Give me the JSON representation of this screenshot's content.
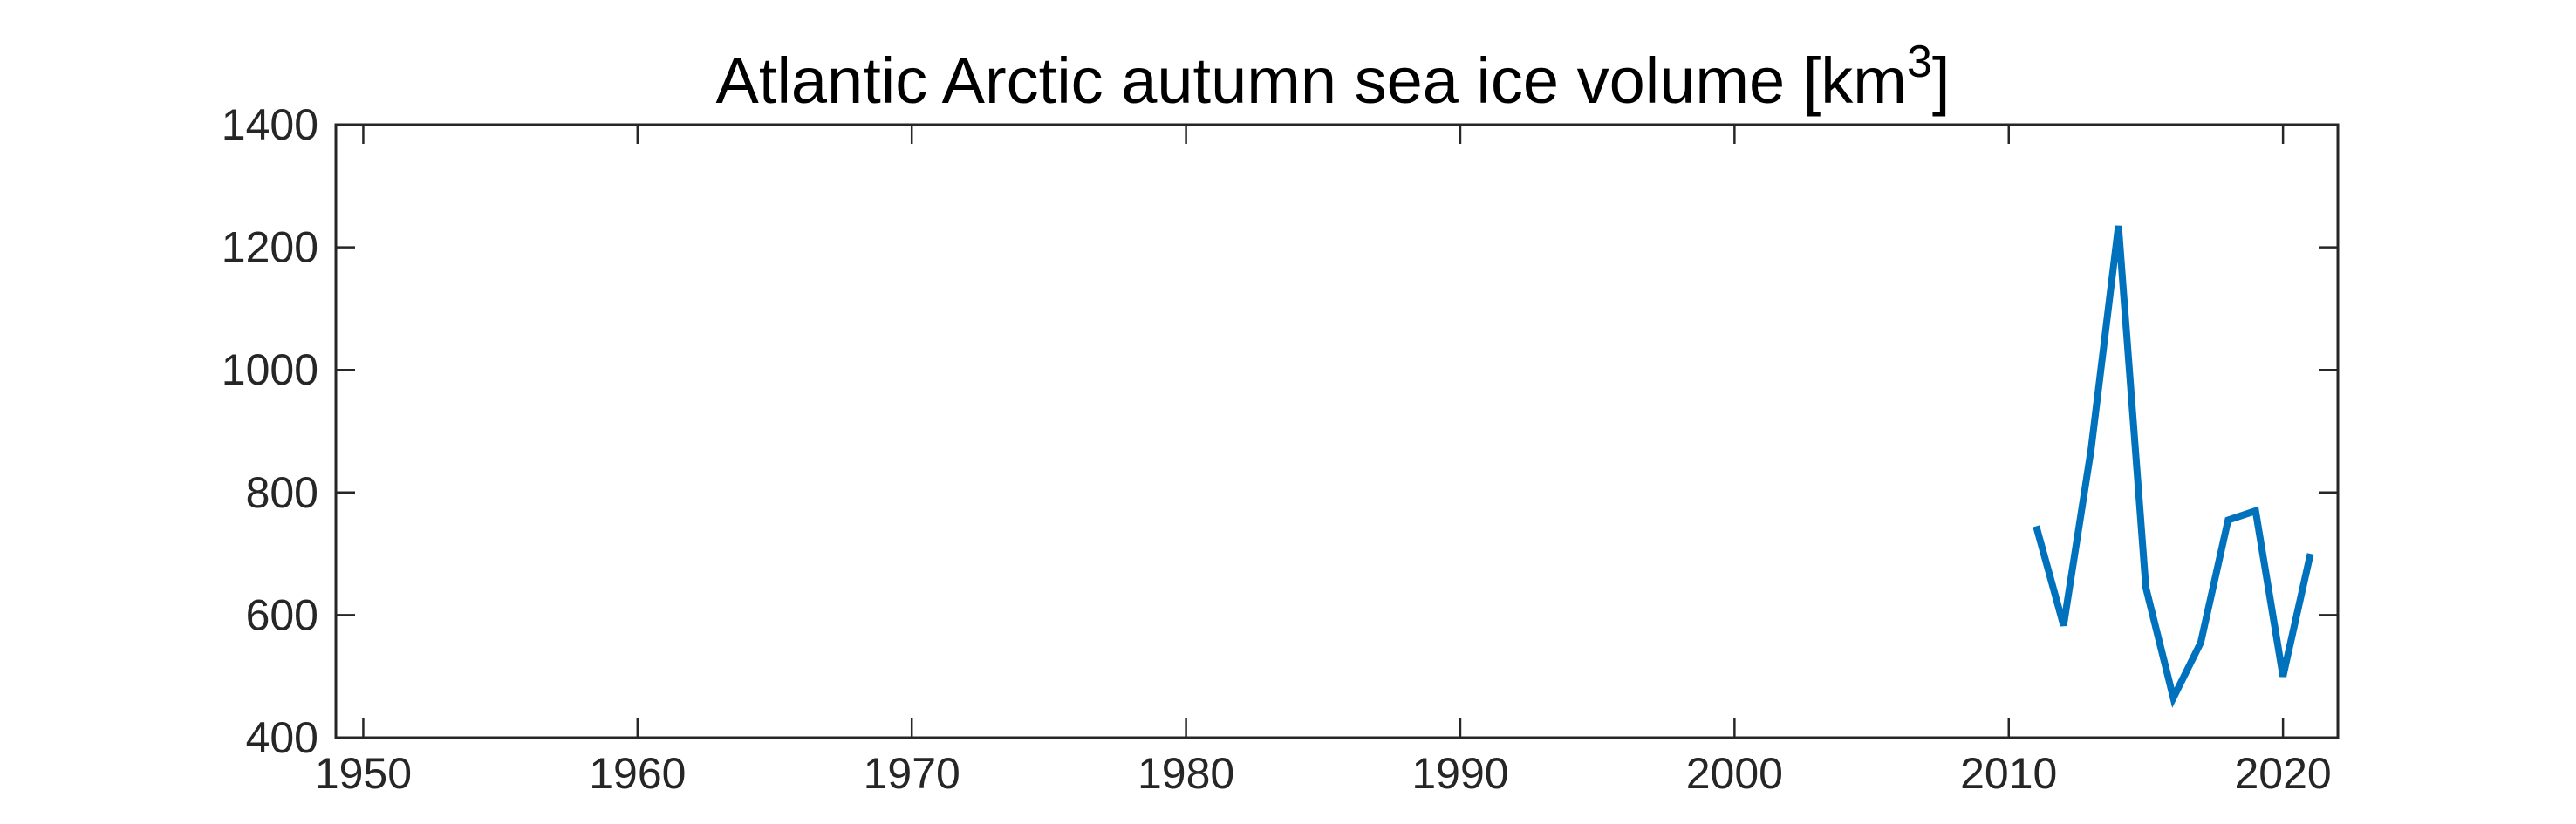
{
  "chart_data": {
    "type": "line",
    "title": "Atlantic Arctic autumn sea ice volume [km",
    "title_superscript": "3",
    "title_suffix": "]",
    "xlim": [
      1949,
      2022
    ],
    "ylim": [
      400,
      1400
    ],
    "xticks": [
      1950,
      1960,
      1970,
      1980,
      1990,
      2000,
      2010,
      2020
    ],
    "yticks": [
      400,
      600,
      800,
      1000,
      1200,
      1400
    ],
    "grid": false,
    "series": [
      {
        "color": "#0072BD",
        "x": [
          2011,
          2012,
          2013,
          2014,
          2015,
          2016,
          2017,
          2018,
          2019,
          2020,
          2021
        ],
        "y": [
          745,
          583,
          870,
          1235,
          645,
          465,
          555,
          755,
          770,
          500,
          700
        ]
      }
    ]
  }
}
